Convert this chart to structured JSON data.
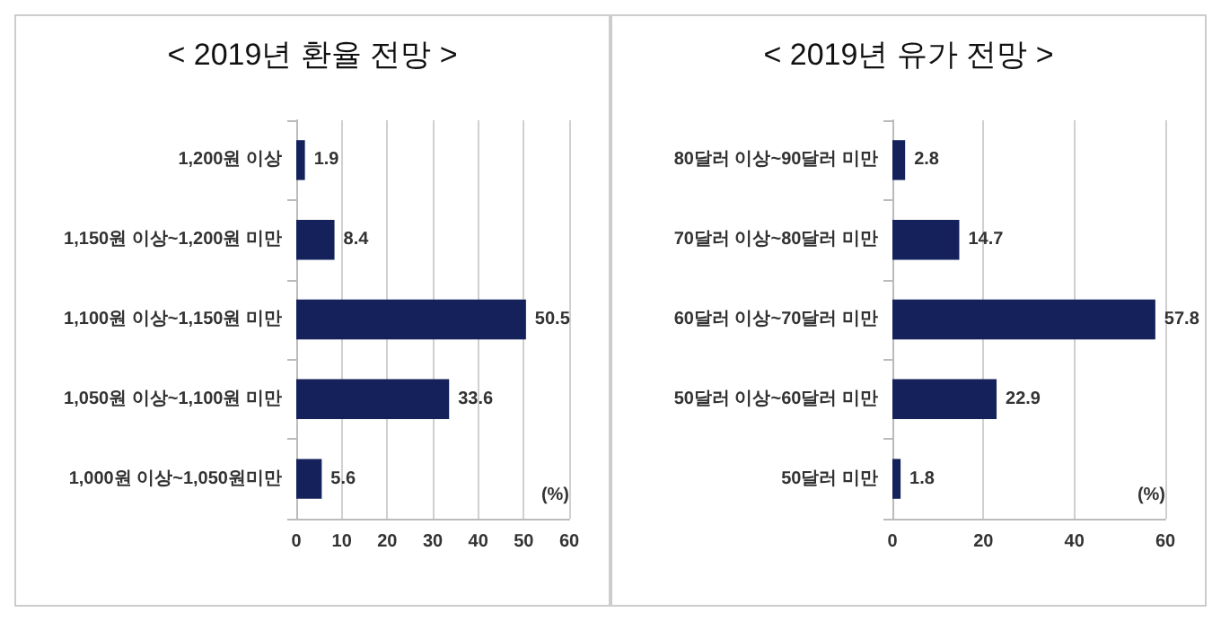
{
  "chart_data": [
    {
      "type": "bar",
      "orientation": "horizontal",
      "title": "< 2019년 환율 전망 >",
      "xlabel": "(%)",
      "categories": [
        "1,200원 이상",
        "1,150원 이상~1,200원 미만",
        "1,100원 이상~1,150원 미만",
        "1,050원 이상~1,100원 미만",
        "1,000원 이상~1,050원미만"
      ],
      "values": [
        1.9,
        8.4,
        50.5,
        33.6,
        5.6
      ],
      "color": "#14215a",
      "data_labels": true,
      "xlim": [
        0,
        60
      ],
      "xticks": [
        0,
        10,
        20,
        30,
        40,
        50,
        60
      ],
      "grid": "x"
    },
    {
      "type": "bar",
      "orientation": "horizontal",
      "title": "< 2019년 유가 전망 >",
      "xlabel": "(%)",
      "categories": [
        "80달러 이상~90달러 미만",
        "70달러 이상~80달러 미만",
        "60달러 이상~70달러 미만",
        "50달러 이상~60달러 미만",
        "50달러 미만"
      ],
      "values": [
        2.8,
        14.7,
        57.8,
        22.9,
        1.8
      ],
      "color": "#14215a",
      "data_labels": true,
      "xlim": [
        0,
        60
      ],
      "xticks": [
        0,
        20,
        40,
        60
      ],
      "grid": "x"
    }
  ]
}
